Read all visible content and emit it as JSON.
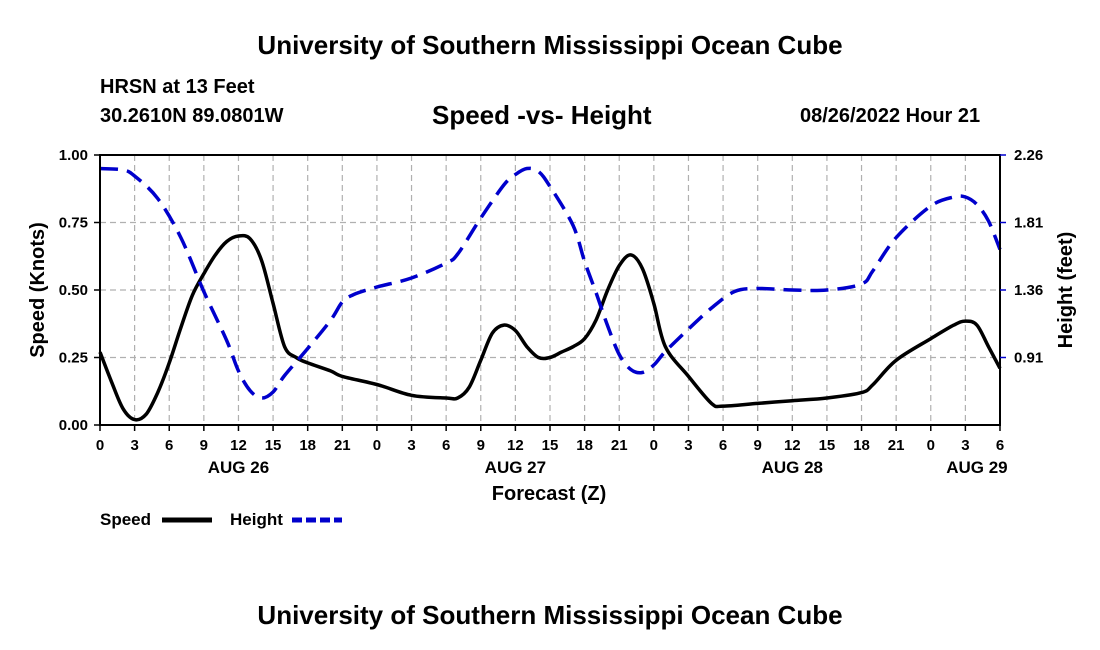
{
  "header": {
    "title": "University of Southern Mississippi Ocean Cube",
    "station": "HRSN at 13 Feet",
    "coordinates": "30.2610N  89.0801W",
    "chart_title": "Speed -vs- Height",
    "datetime": "08/26/2022 Hour 21",
    "footer_title": "University of Southern Mississippi Ocean Cube"
  },
  "colors": {
    "speed": "#000000",
    "height": "#0000cc",
    "grid": "#b0b0b0"
  },
  "chart_data": {
    "type": "line",
    "title": "Speed -vs- Height",
    "xlabel": "Forecast (Z)",
    "ylabel": "Speed (Knots)",
    "y2label": "Height (feet)",
    "xlim": [
      0,
      78
    ],
    "ylim": [
      0,
      1.0
    ],
    "y2lim": [
      0.46,
      2.26
    ],
    "x_ticks": [
      0,
      3,
      6,
      9,
      12,
      15,
      18,
      21,
      24,
      27,
      30,
      33,
      36,
      39,
      42,
      45,
      48,
      51,
      54,
      57,
      60,
      63,
      66,
      69,
      72,
      75,
      78
    ],
    "x_tick_labels": [
      "0",
      "3",
      "6",
      "9",
      "12",
      "15",
      "18",
      "21",
      "0",
      "3",
      "6",
      "9",
      "12",
      "15",
      "18",
      "21",
      "0",
      "3",
      "6",
      "9",
      "12",
      "15",
      "18",
      "21",
      "0",
      "3",
      "6"
    ],
    "date_labels": [
      {
        "x": 12,
        "label": "AUG 26"
      },
      {
        "x": 36,
        "label": "AUG 27"
      },
      {
        "x": 60,
        "label": "AUG 28"
      },
      {
        "x": 76,
        "label": "AUG 29"
      }
    ],
    "y_ticks": [
      0,
      0.25,
      0.5,
      0.75,
      1.0
    ],
    "y_tick_labels": [
      "0.00",
      "0.25",
      "0.50",
      "0.75",
      "1.00"
    ],
    "y2_ticks": [
      0.91,
      1.36,
      1.81,
      2.26
    ],
    "y2_tick_labels": [
      "0.91",
      "1.36",
      "1.81",
      "2.26"
    ],
    "grid": true,
    "legend_position": "bottom-left",
    "series": [
      {
        "name": "Speed",
        "axis": "left",
        "style": "solid",
        "points": [
          [
            0,
            0.27
          ],
          [
            1,
            0.16
          ],
          [
            2,
            0.06
          ],
          [
            3,
            0.02
          ],
          [
            4,
            0.04
          ],
          [
            5,
            0.12
          ],
          [
            6,
            0.23
          ],
          [
            7,
            0.36
          ],
          [
            8,
            0.48
          ],
          [
            9,
            0.56
          ],
          [
            10,
            0.63
          ],
          [
            11,
            0.68
          ],
          [
            12,
            0.7
          ],
          [
            13,
            0.69
          ],
          [
            14,
            0.61
          ],
          [
            15,
            0.45
          ],
          [
            16,
            0.29
          ],
          [
            17,
            0.25
          ],
          [
            18,
            0.23
          ],
          [
            20,
            0.2
          ],
          [
            21,
            0.18
          ],
          [
            24,
            0.15
          ],
          [
            27,
            0.11
          ],
          [
            30,
            0.1
          ],
          [
            31,
            0.1
          ],
          [
            32,
            0.14
          ],
          [
            33,
            0.24
          ],
          [
            34,
            0.34
          ],
          [
            35,
            0.37
          ],
          [
            36,
            0.35
          ],
          [
            37,
            0.29
          ],
          [
            38,
            0.25
          ],
          [
            39,
            0.25
          ],
          [
            40,
            0.27
          ],
          [
            41,
            0.29
          ],
          [
            42,
            0.32
          ],
          [
            43,
            0.39
          ],
          [
            44,
            0.5
          ],
          [
            45,
            0.59
          ],
          [
            46,
            0.63
          ],
          [
            47,
            0.58
          ],
          [
            48,
            0.45
          ],
          [
            49,
            0.29
          ],
          [
            51,
            0.18
          ],
          [
            53,
            0.08
          ],
          [
            54,
            0.07
          ],
          [
            57,
            0.08
          ],
          [
            60,
            0.09
          ],
          [
            63,
            0.1
          ],
          [
            66,
            0.12
          ],
          [
            67,
            0.15
          ],
          [
            69,
            0.24
          ],
          [
            72,
            0.32
          ],
          [
            74,
            0.37
          ],
          [
            75,
            0.385
          ],
          [
            76,
            0.37
          ],
          [
            77,
            0.29
          ],
          [
            78,
            0.21
          ]
        ]
      },
      {
        "name": "Height",
        "axis": "right",
        "style": "dashed",
        "points": [
          [
            0,
            2.17
          ],
          [
            2,
            2.16
          ],
          [
            3,
            2.12
          ],
          [
            5,
            1.97
          ],
          [
            7,
            1.71
          ],
          [
            9,
            1.35
          ],
          [
            11,
            1.02
          ],
          [
            12,
            0.82
          ],
          [
            13,
            0.69
          ],
          [
            14,
            0.64
          ],
          [
            15,
            0.68
          ],
          [
            16,
            0.79
          ],
          [
            18,
            0.97
          ],
          [
            20,
            1.16
          ],
          [
            21,
            1.28
          ],
          [
            22,
            1.33
          ],
          [
            24,
            1.38
          ],
          [
            27,
            1.44
          ],
          [
            30,
            1.54
          ],
          [
            31,
            1.6
          ],
          [
            33,
            1.84
          ],
          [
            35,
            2.06
          ],
          [
            36,
            2.13
          ],
          [
            37,
            2.17
          ],
          [
            38,
            2.15
          ],
          [
            39,
            2.05
          ],
          [
            41,
            1.79
          ],
          [
            42,
            1.55
          ],
          [
            43,
            1.34
          ],
          [
            44,
            1.12
          ],
          [
            45,
            0.93
          ],
          [
            46,
            0.83
          ],
          [
            47,
            0.81
          ],
          [
            48,
            0.86
          ],
          [
            49,
            0.95
          ],
          [
            51,
            1.1
          ],
          [
            53,
            1.24
          ],
          [
            55,
            1.35
          ],
          [
            57,
            1.37
          ],
          [
            60,
            1.36
          ],
          [
            63,
            1.36
          ],
          [
            66,
            1.4
          ],
          [
            67,
            1.49
          ],
          [
            69,
            1.71
          ],
          [
            72,
            1.92
          ],
          [
            74,
            1.98
          ],
          [
            75,
            1.98
          ],
          [
            76,
            1.93
          ],
          [
            77,
            1.82
          ],
          [
            78,
            1.63
          ]
        ]
      }
    ]
  },
  "legend": {
    "speed_label": "Speed",
    "height_label": "Height"
  }
}
